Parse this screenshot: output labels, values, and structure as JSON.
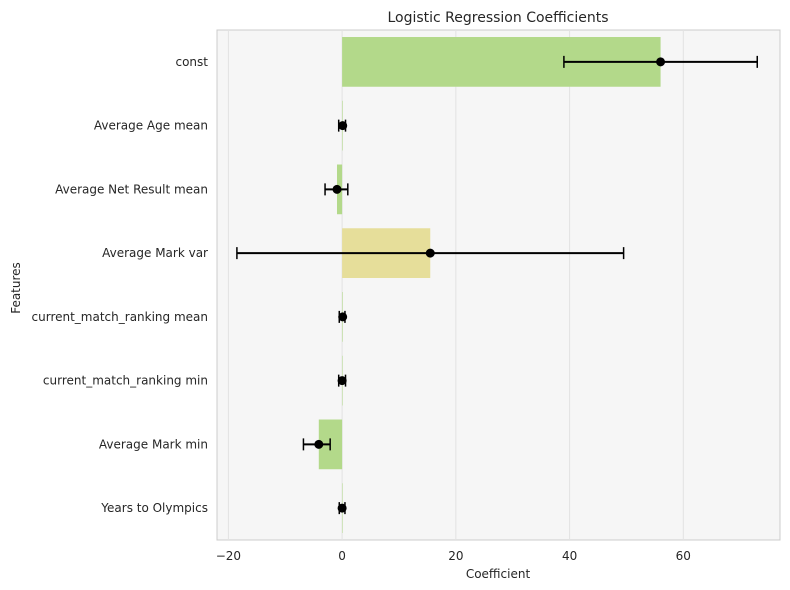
{
  "chart_data": {
    "type": "bar",
    "orientation": "horizontal",
    "title": "Logistic Regression Coefficients",
    "xlabel": "Coefficient",
    "ylabel": "Features",
    "xlim": [
      -22,
      77
    ],
    "xticks": [
      -20,
      0,
      20,
      40,
      60
    ],
    "grid": true,
    "categories": [
      "const",
      "Average Age mean",
      "Average Net Result mean",
      "Average Mark var",
      "current_match_ranking mean",
      "current_match_ranking min",
      "Average Mark min",
      "Years to Olympics"
    ],
    "values": [
      56.0,
      0.1,
      -0.9,
      15.5,
      0.1,
      0.0,
      -4.1,
      0.0
    ],
    "error_low": [
      39.0,
      -0.6,
      -3.0,
      -18.5,
      -0.5,
      -0.6,
      -6.8,
      -0.5
    ],
    "error_high": [
      73.0,
      0.6,
      1.0,
      49.5,
      0.5,
      0.6,
      -2.1,
      0.5
    ],
    "bar_colors": [
      "#b3d98a",
      "#b3d98a",
      "#b3d98a",
      "#e6de9a",
      "#b3d98a",
      "#b3d98a",
      "#b3d98a",
      "#b3d98a"
    ],
    "point_color": "#000000",
    "plot_background": "#f6f6f6"
  }
}
